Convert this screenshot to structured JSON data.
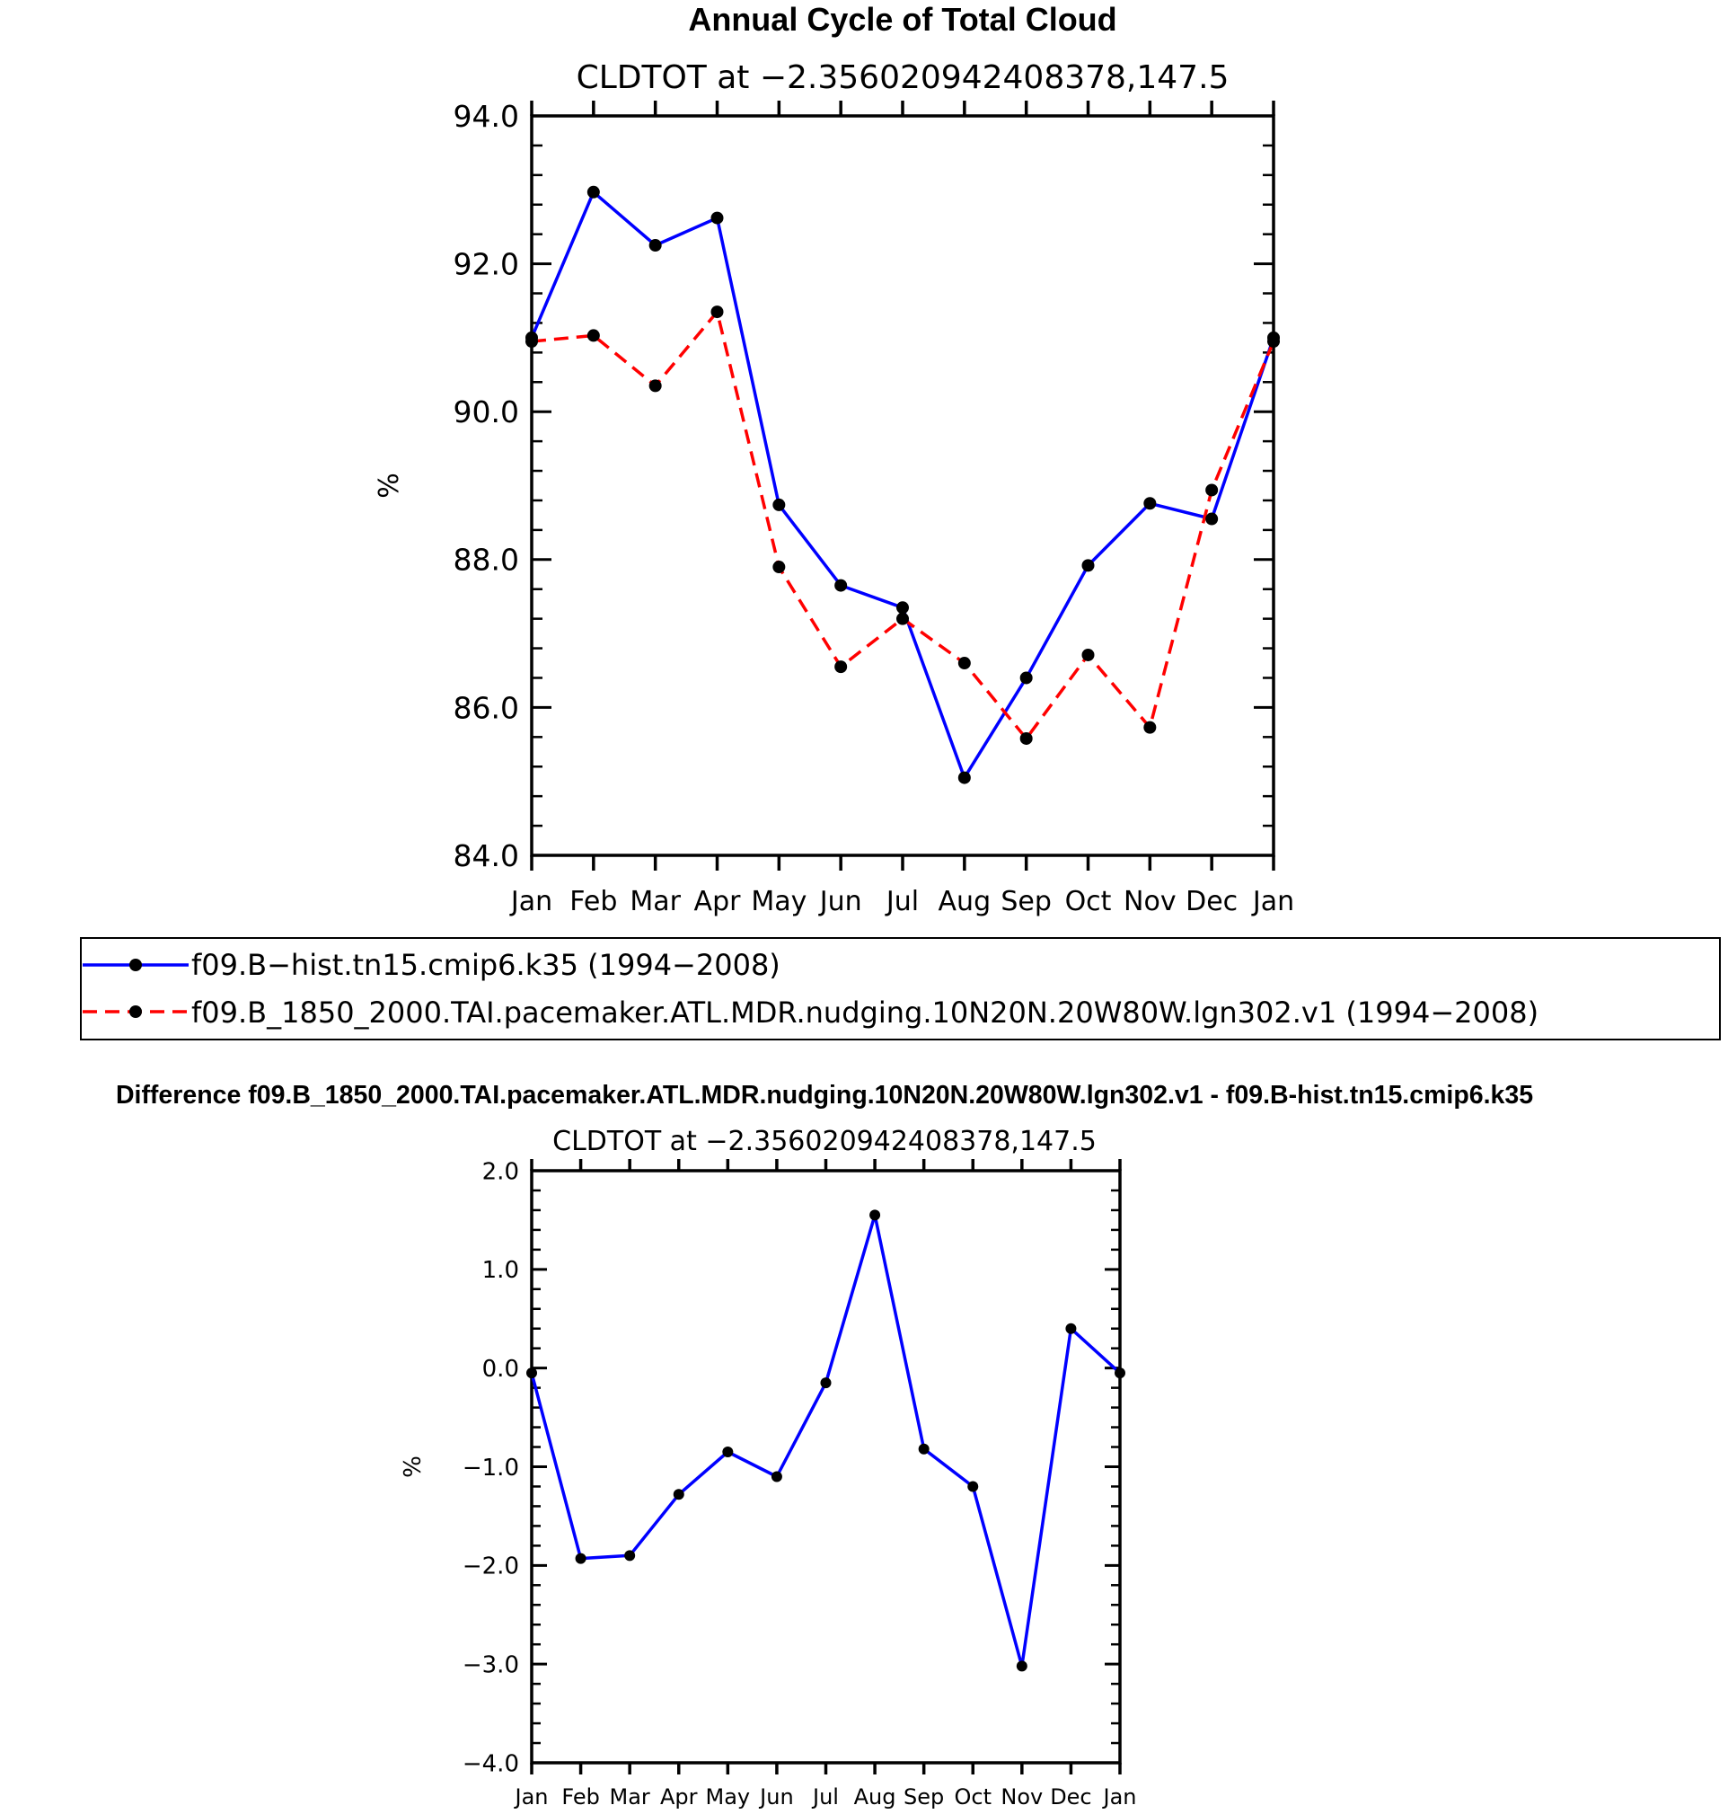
{
  "chart_data": [
    {
      "type": "line",
      "title": "Annual Cycle of Total Cloud",
      "subtitle": "CLDTOT at −2.356020942408378,147.5",
      "ylabel": "%",
      "ylim": [
        84.0,
        94.0
      ],
      "yticks": [
        "94.0",
        "92.0",
        "90.0",
        "88.0",
        "86.0",
        "84.0"
      ],
      "categories": [
        "Jan",
        "Feb",
        "Mar",
        "Apr",
        "May",
        "Jun",
        "Jul",
        "Aug",
        "Sep",
        "Oct",
        "Nov",
        "Dec",
        "Jan"
      ],
      "series": [
        {
          "name": "f09.B−hist.tn15.cmip6.k35 (1994−2008)",
          "color": "#0000ff",
          "style": "solid",
          "values": [
            91.0,
            92.97,
            92.25,
            92.62,
            88.74,
            87.65,
            87.35,
            85.05,
            86.4,
            87.92,
            88.76,
            88.55,
            91.0
          ]
        },
        {
          "name": "f09.B_1850_2000.TAI.pacemaker.ATL.MDR.nudging.10N20N.20W80W.lgn302.v1 (1994−2008)",
          "color": "#ff0000",
          "style": "dashed",
          "values": [
            90.95,
            91.03,
            90.35,
            91.35,
            87.9,
            86.55,
            87.2,
            86.6,
            85.58,
            86.71,
            85.73,
            88.94,
            90.95
          ]
        }
      ],
      "legend_placement": "below"
    },
    {
      "type": "line",
      "title": "Difference f09.B_1850_2000.TAI.pacemaker.ATL.MDR.nudging.10N20N.20W80W.lgn302.v1 - f09.B-hist.tn15.cmip6.k35",
      "subtitle": "CLDTOT at −2.356020942408378,147.5",
      "ylabel": "%",
      "ylim": [
        -4.0,
        2.0
      ],
      "yticks": [
        "2.0",
        "1.0",
        "0.0",
        "−1.0",
        "−2.0",
        "−3.0",
        "−4.0"
      ],
      "categories": [
        "Jan",
        "Feb",
        "Mar",
        "Apr",
        "May",
        "Jun",
        "Jul",
        "Aug",
        "Sep",
        "Oct",
        "Nov",
        "Dec",
        "Jan"
      ],
      "series": [
        {
          "color": "#0000ff",
          "style": "solid",
          "values": [
            -0.05,
            -1.93,
            -1.9,
            -1.28,
            -0.85,
            -1.1,
            -0.15,
            1.55,
            -0.82,
            -1.2,
            -3.02,
            0.4,
            -0.05
          ]
        }
      ]
    }
  ]
}
